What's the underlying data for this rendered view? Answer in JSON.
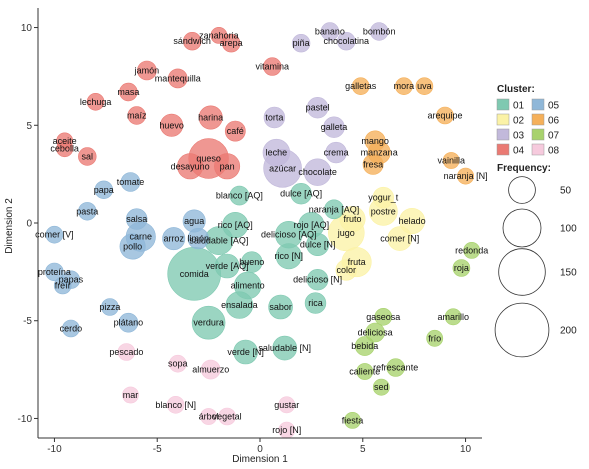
{
  "chart_data": {
    "type": "scatter",
    "title": "",
    "xlabel": "Dimension 1",
    "ylabel": "Dimension 2",
    "xlim": [
      -10.8,
      10.8
    ],
    "ylim": [
      -11.0,
      11.0
    ],
    "x_ticks": [
      -10,
      -5,
      0,
      5,
      10
    ],
    "y_ticks": [
      -10,
      -5,
      0,
      5,
      10
    ],
    "grid": false,
    "legend_position": "right",
    "cluster_legend": {
      "title": "Cluster:",
      "items": [
        {
          "label": "01",
          "color": "#7fc9b1"
        },
        {
          "label": "02",
          "color": "#fbf2a6"
        },
        {
          "label": "03",
          "color": "#c2b9db"
        },
        {
          "label": "04",
          "color": "#ea7a73"
        },
        {
          "label": "05",
          "color": "#8fb7d8"
        },
        {
          "label": "06",
          "color": "#f5b05a"
        },
        {
          "label": "07",
          "color": "#a8d26d"
        },
        {
          "label": "08",
          "color": "#f6cadd"
        }
      ]
    },
    "size_legend": {
      "title": "Frequency:",
      "values": [
        50,
        100,
        150,
        200
      ]
    },
    "points": [
      {
        "label": "banano",
        "cluster": "03",
        "x": 3.4,
        "y": 9.8,
        "freq": 22
      },
      {
        "label": "bombón",
        "cluster": "03",
        "x": 5.8,
        "y": 9.8,
        "freq": 22
      },
      {
        "label": "piña",
        "cluster": "03",
        "x": 2.0,
        "y": 9.2,
        "freq": 22
      },
      {
        "label": "chocolatina",
        "cluster": "03",
        "x": 4.2,
        "y": 9.3,
        "freq": 22
      },
      {
        "label": "zanahoria",
        "cluster": "04",
        "x": -2.0,
        "y": 9.6,
        "freq": 18
      },
      {
        "label": "sándwich",
        "cluster": "04",
        "x": -3.3,
        "y": 9.3,
        "freq": 22
      },
      {
        "label": "arepa",
        "cluster": "04",
        "x": -1.4,
        "y": 9.2,
        "freq": 22
      },
      {
        "label": "vitamina",
        "cluster": "04",
        "x": 0.6,
        "y": 8.0,
        "freq": 22
      },
      {
        "label": "jamón",
        "cluster": "04",
        "x": -5.5,
        "y": 7.8,
        "freq": 25
      },
      {
        "label": "mantequilla",
        "cluster": "04",
        "x": -4.0,
        "y": 7.4,
        "freq": 25
      },
      {
        "label": "masa",
        "cluster": "04",
        "x": -6.4,
        "y": 6.7,
        "freq": 22
      },
      {
        "label": "lechuga",
        "cluster": "04",
        "x": -8.0,
        "y": 6.2,
        "freq": 20
      },
      {
        "label": "maíz",
        "cluster": "04",
        "x": -6.0,
        "y": 5.5,
        "freq": 22
      },
      {
        "label": "harina",
        "cluster": "04",
        "x": -2.4,
        "y": 5.4,
        "freq": 38
      },
      {
        "label": "huevo",
        "cluster": "04",
        "x": -4.3,
        "y": 5.0,
        "freq": 35
      },
      {
        "label": "café",
        "cluster": "04",
        "x": -1.2,
        "y": 4.7,
        "freq": 28
      },
      {
        "label": "aceite",
        "cluster": "04",
        "x": -9.5,
        "y": 4.2,
        "freq": 18
      },
      {
        "label": "cebolla",
        "cluster": "04",
        "x": -9.5,
        "y": 3.8,
        "freq": 18
      },
      {
        "label": "sal",
        "cluster": "04",
        "x": -8.4,
        "y": 3.4,
        "freq": 22
      },
      {
        "label": "queso",
        "cluster": "04",
        "x": -2.5,
        "y": 3.3,
        "freq": 110
      },
      {
        "label": "desayuno",
        "cluster": "04",
        "x": -3.4,
        "y": 2.9,
        "freq": 45
      },
      {
        "label": "pan",
        "cluster": "04",
        "x": -1.6,
        "y": 2.9,
        "freq": 45
      },
      {
        "label": "pastel",
        "cluster": "03",
        "x": 2.8,
        "y": 5.9,
        "freq": 30
      },
      {
        "label": "torta",
        "cluster": "03",
        "x": 0.7,
        "y": 5.4,
        "freq": 30
      },
      {
        "label": "galleta",
        "cluster": "03",
        "x": 3.6,
        "y": 4.9,
        "freq": 30
      },
      {
        "label": "leche",
        "cluster": "03",
        "x": 0.8,
        "y": 3.6,
        "freq": 50
      },
      {
        "label": "crema",
        "cluster": "03",
        "x": 3.7,
        "y": 3.6,
        "freq": 30
      },
      {
        "label": "azúcar",
        "cluster": "03",
        "x": 1.1,
        "y": 2.8,
        "freq": 100
      },
      {
        "label": "chocolate",
        "cluster": "03",
        "x": 2.8,
        "y": 2.6,
        "freq": 50
      },
      {
        "label": "galletas",
        "cluster": "06",
        "x": 4.9,
        "y": 7.0,
        "freq": 20
      },
      {
        "label": "mora",
        "cluster": "06",
        "x": 7.0,
        "y": 7.0,
        "freq": 20
      },
      {
        "label": "uva",
        "cluster": "06",
        "x": 8.0,
        "y": 7.0,
        "freq": 20
      },
      {
        "label": "arequipe",
        "cluster": "06",
        "x": 9.0,
        "y": 5.5,
        "freq": 20
      },
      {
        "label": "mango",
        "cluster": "06",
        "x": 5.6,
        "y": 4.2,
        "freq": 28
      },
      {
        "label": "manzana",
        "cluster": "06",
        "x": 5.8,
        "y": 3.6,
        "freq": 35
      },
      {
        "label": "fresa",
        "cluster": "06",
        "x": 5.5,
        "y": 3.0,
        "freq": 28
      },
      {
        "label": "vainilla",
        "cluster": "06",
        "x": 9.3,
        "y": 3.2,
        "freq": 18
      },
      {
        "label": "naranja [N]",
        "cluster": "06",
        "x": 10.0,
        "y": 2.4,
        "freq": 18
      },
      {
        "label": "dulce [AQ]",
        "cluster": "01",
        "x": 2.0,
        "y": 1.5,
        "freq": 30
      },
      {
        "label": "blanco [AQ]",
        "cluster": "01",
        "x": -1.0,
        "y": 1.4,
        "freq": 25
      },
      {
        "label": "naranja [AQ]",
        "cluster": "01",
        "x": 3.6,
        "y": 0.7,
        "freq": 25
      },
      {
        "label": "rojo [AQ]",
        "cluster": "01",
        "x": 2.5,
        "y": -0.1,
        "freq": 45
      },
      {
        "label": "rico [AQ]",
        "cluster": "01",
        "x": -1.2,
        "y": -0.1,
        "freq": 45
      },
      {
        "label": "delicioso [AQ]",
        "cluster": "01",
        "x": 1.4,
        "y": -0.6,
        "freq": 50
      },
      {
        "label": "saludable [AQ]",
        "cluster": "01",
        "x": -2.0,
        "y": -0.9,
        "freq": 55
      },
      {
        "label": "dulce [N]",
        "cluster": "01",
        "x": 2.8,
        "y": -1.1,
        "freq": 35
      },
      {
        "label": "verde [AQ]",
        "cluster": "01",
        "x": -1.6,
        "y": -2.2,
        "freq": 40
      },
      {
        "label": "bueno",
        "cluster": "01",
        "x": -0.4,
        "y": -2.0,
        "freq": 30
      },
      {
        "label": "rico [N]",
        "cluster": "01",
        "x": 1.4,
        "y": -1.7,
        "freq": 45
      },
      {
        "label": "comida",
        "cluster": "01",
        "x": -3.2,
        "y": -2.6,
        "freq": 195
      },
      {
        "label": "alimento",
        "cluster": "01",
        "x": -0.6,
        "y": -3.2,
        "freq": 50
      },
      {
        "label": "delicioso [N]",
        "cluster": "01",
        "x": 2.8,
        "y": -2.9,
        "freq": 30
      },
      {
        "label": "ensalada",
        "cluster": "01",
        "x": -1.0,
        "y": -4.2,
        "freq": 50
      },
      {
        "label": "sabor",
        "cluster": "01",
        "x": 1.0,
        "y": -4.3,
        "freq": 40
      },
      {
        "label": "rica",
        "cluster": "01",
        "x": 2.7,
        "y": -4.1,
        "freq": 30
      },
      {
        "label": "verdura",
        "cluster": "01",
        "x": -2.5,
        "y": -5.1,
        "freq": 75
      },
      {
        "label": "verde [N]",
        "cluster": "01",
        "x": -0.7,
        "y": -6.6,
        "freq": 40
      },
      {
        "label": "saludable [N]",
        "cluster": "01",
        "x": 1.2,
        "y": -6.4,
        "freq": 40
      },
      {
        "label": "yogur_t",
        "cluster": "02",
        "x": 6.0,
        "y": 1.3,
        "freq": 30
      },
      {
        "label": "fruto",
        "cluster": "02",
        "x": 4.5,
        "y": 0.2,
        "freq": 45
      },
      {
        "label": "postre",
        "cluster": "02",
        "x": 6.0,
        "y": 0.6,
        "freq": 55
      },
      {
        "label": "helado",
        "cluster": "02",
        "x": 7.4,
        "y": 0.1,
        "freq": 45
      },
      {
        "label": "jugo",
        "cluster": "02",
        "x": 4.2,
        "y": -0.5,
        "freq": 90
      },
      {
        "label": "comer [N]",
        "cluster": "02",
        "x": 6.8,
        "y": -0.8,
        "freq": 40
      },
      {
        "label": "fruta",
        "cluster": "02",
        "x": 4.7,
        "y": -2.0,
        "freq": 60
      },
      {
        "label": "color",
        "cluster": "02",
        "x": 4.2,
        "y": -2.4,
        "freq": 30
      },
      {
        "label": "redonda",
        "cluster": "07",
        "x": 10.3,
        "y": -1.4,
        "freq": 18
      },
      {
        "label": "roja",
        "cluster": "07",
        "x": 9.8,
        "y": -2.3,
        "freq": 20
      },
      {
        "label": "gaseosa",
        "cluster": "07",
        "x": 6.0,
        "y": -4.8,
        "freq": 20
      },
      {
        "label": "amarillo",
        "cluster": "07",
        "x": 9.4,
        "y": -4.8,
        "freq": 18
      },
      {
        "label": "deliciosa",
        "cluster": "07",
        "x": 5.6,
        "y": -5.6,
        "freq": 25
      },
      {
        "label": "frío",
        "cluster": "07",
        "x": 8.5,
        "y": -5.9,
        "freq": 18
      },
      {
        "label": "bebida",
        "cluster": "07",
        "x": 5.1,
        "y": -6.3,
        "freq": 25
      },
      {
        "label": "caliente",
        "cluster": "07",
        "x": 5.1,
        "y": -7.6,
        "freq": 18
      },
      {
        "label": "refrescante",
        "cluster": "07",
        "x": 6.6,
        "y": -7.4,
        "freq": 22
      },
      {
        "label": "sed",
        "cluster": "07",
        "x": 5.9,
        "y": -8.4,
        "freq": 18
      },
      {
        "label": "fiesta",
        "cluster": "07",
        "x": 4.5,
        "y": -10.1,
        "freq": 18
      },
      {
        "label": "papa",
        "cluster": "05",
        "x": -7.6,
        "y": 1.7,
        "freq": 22
      },
      {
        "label": "tomate",
        "cluster": "05",
        "x": -6.3,
        "y": 2.1,
        "freq": 25
      },
      {
        "label": "pasta",
        "cluster": "05",
        "x": -8.4,
        "y": 0.6,
        "freq": 22
      },
      {
        "label": "salsa",
        "cluster": "05",
        "x": -6.0,
        "y": 0.2,
        "freq": 30
      },
      {
        "label": "agua",
        "cluster": "05",
        "x": -3.2,
        "y": 0.1,
        "freq": 35
      },
      {
        "label": "carne",
        "cluster": "05",
        "x": -5.8,
        "y": -0.7,
        "freq": 60
      },
      {
        "label": "comer [V]",
        "cluster": "05",
        "x": -10.0,
        "y": -0.6,
        "freq": 20
      },
      {
        "label": "limón",
        "cluster": "05",
        "x": -3.0,
        "y": -0.8,
        "freq": 30
      },
      {
        "label": "pollo",
        "cluster": "05",
        "x": -6.2,
        "y": -1.2,
        "freq": 45
      },
      {
        "label": "arroz",
        "cluster": "05",
        "x": -4.2,
        "y": -0.8,
        "freq": 35
      },
      {
        "label": "proteína",
        "cluster": "05",
        "x": -10.0,
        "y": -2.5,
        "freq": 22
      },
      {
        "label": "papas",
        "cluster": "05",
        "x": -9.2,
        "y": -2.9,
        "freq": 22
      },
      {
        "label": "freír",
        "cluster": "05",
        "x": -9.6,
        "y": -3.2,
        "freq": 20
      },
      {
        "label": "pizza",
        "cluster": "05",
        "x": -7.3,
        "y": -4.3,
        "freq": 20
      },
      {
        "label": "cerdo",
        "cluster": "05",
        "x": -9.2,
        "y": -5.4,
        "freq": 20
      },
      {
        "label": "plátano",
        "cluster": "05",
        "x": -6.4,
        "y": -5.1,
        "freq": 25
      },
      {
        "label": "pescado",
        "cluster": "08",
        "x": -6.5,
        "y": -6.6,
        "freq": 20
      },
      {
        "label": "sopa",
        "cluster": "08",
        "x": -4.0,
        "y": -7.2,
        "freq": 20
      },
      {
        "label": "almuerzo",
        "cluster": "08",
        "x": -2.4,
        "y": -7.5,
        "freq": 25
      },
      {
        "label": "mar",
        "cluster": "08",
        "x": -6.3,
        "y": -8.8,
        "freq": 18
      },
      {
        "label": "blanco [N]",
        "cluster": "08",
        "x": -4.1,
        "y": -9.3,
        "freq": 20
      },
      {
        "label": "árbol",
        "cluster": "08",
        "x": -2.5,
        "y": -9.9,
        "freq": 18
      },
      {
        "label": "vegetal",
        "cluster": "08",
        "x": -1.6,
        "y": -9.9,
        "freq": 20
      },
      {
        "label": "gustar",
        "cluster": "08",
        "x": 1.3,
        "y": -9.3,
        "freq": 18
      },
      {
        "label": "rojo [N]",
        "cluster": "08",
        "x": 1.3,
        "y": -10.6,
        "freq": 18
      }
    ]
  }
}
